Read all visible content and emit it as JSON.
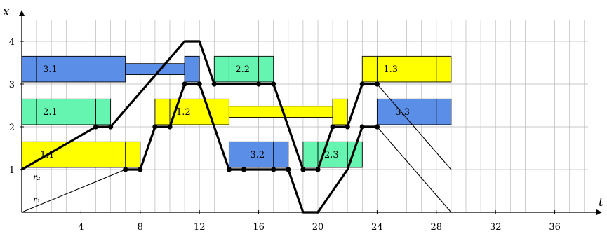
{
  "chart_data": {
    "type": "diagram",
    "axes": {
      "x_title": "t",
      "y_title": "x",
      "x_ticks": [
        4,
        8,
        12,
        16,
        20,
        24,
        28,
        32,
        36
      ],
      "x_tick_labels": [
        "4",
        "8",
        "12",
        "16",
        "20",
        "24",
        "28",
        "32",
        "36"
      ],
      "y_ticks": [
        1,
        2,
        3,
        4
      ],
      "y_tick_labels": [
        "1",
        "2",
        "3",
        "4"
      ],
      "x_range": [
        0,
        38.3
      ],
      "y_range": [
        0,
        4.7
      ],
      "grid": true
    },
    "colors": {
      "green": "#66f5b0",
      "blue": "#5b8ee6",
      "yellow": "#ffff00",
      "grid": "#b9b9b9"
    },
    "boxes": [
      {
        "label": "1.1",
        "color": "yellow",
        "t0": 0,
        "t1": 8,
        "x0": 1.05,
        "x1": 1.65,
        "dividers": [
          7
        ]
      },
      {
        "label": "2.1",
        "color": "green",
        "t0": 0,
        "t1": 6,
        "x0": 2.05,
        "x1": 2.65,
        "dividers": [
          1,
          5
        ]
      },
      {
        "label": "3.1",
        "color": "blue",
        "t0": 0,
        "t1": 7,
        "x0": 3.05,
        "x1": 3.65,
        "dividers": [
          1
        ]
      },
      {
        "label": "",
        "color": "blue",
        "t0": 7,
        "t1": 11,
        "x0": 3.22,
        "x1": 3.48,
        "dividers": []
      },
      {
        "label": "",
        "color": "blue",
        "t0": 11,
        "t1": 12,
        "x0": 3.05,
        "x1": 3.65,
        "dividers": []
      },
      {
        "label": "1.2",
        "color": "yellow",
        "t0": 9,
        "t1": 14,
        "x0": 2.05,
        "x1": 2.65,
        "dividers": [
          10
        ]
      },
      {
        "label": "",
        "color": "yellow",
        "t0": 14,
        "t1": 21,
        "x0": 2.22,
        "x1": 2.48,
        "dividers": []
      },
      {
        "label": "",
        "color": "yellow",
        "t0": 21,
        "t1": 22,
        "x0": 2.05,
        "x1": 2.65,
        "dividers": []
      },
      {
        "label": "2.2",
        "color": "green",
        "t0": 13,
        "t1": 17,
        "x0": 3.05,
        "x1": 3.65,
        "dividers": [
          14,
          16
        ]
      },
      {
        "label": "3.2",
        "color": "blue",
        "t0": 14,
        "t1": 18,
        "x0": 1.05,
        "x1": 1.65,
        "dividers": [
          15,
          17
        ]
      },
      {
        "label": "2.3",
        "color": "green",
        "t0": 19,
        "t1": 23,
        "x0": 1.05,
        "x1": 1.65,
        "dividers": [
          20,
          22
        ]
      },
      {
        "label": "1.3",
        "color": "yellow",
        "t0": 23,
        "t1": 29,
        "x0": 3.05,
        "x1": 3.65,
        "dividers": [
          24,
          28
        ]
      },
      {
        "label": "3.3",
        "color": "blue",
        "t0": 24,
        "t1": 29,
        "x0": 2.05,
        "x1": 2.65,
        "dividers": [
          28
        ]
      }
    ],
    "lines": [
      {
        "name": "r1",
        "label": "r₁",
        "thick": false,
        "points": [
          [
            0,
            0
          ],
          [
            7,
            1
          ],
          [
            8,
            1
          ],
          [
            9,
            2
          ],
          [
            10,
            2
          ],
          [
            11,
            3
          ],
          [
            12,
            3
          ],
          [
            14,
            1
          ],
          [
            15,
            1
          ],
          [
            17,
            1
          ],
          [
            18,
            1
          ],
          [
            19,
            0
          ],
          [
            20,
            0
          ],
          [
            22,
            1
          ],
          [
            23,
            2
          ],
          [
            24,
            2
          ],
          [
            29,
            0
          ]
        ]
      },
      {
        "name": "r2",
        "label": "r₂",
        "thick": false,
        "points": [
          [
            0,
            1
          ],
          [
            5,
            2
          ],
          [
            6,
            2
          ],
          [
            11,
            4
          ],
          [
            12,
            4
          ],
          [
            13,
            3
          ],
          [
            16,
            3
          ],
          [
            17,
            3
          ],
          [
            19,
            1
          ],
          [
            20,
            1
          ],
          [
            21,
            2
          ],
          [
            22,
            2
          ],
          [
            23,
            3
          ],
          [
            24,
            3
          ],
          [
            29,
            1
          ]
        ]
      },
      {
        "name": "max",
        "label": "",
        "thick": true,
        "points": [
          [
            0,
            1
          ],
          [
            5,
            2
          ],
          [
            6,
            2
          ],
          [
            11,
            4
          ],
          [
            12,
            4
          ],
          [
            13,
            3
          ],
          [
            16,
            3
          ],
          [
            17,
            3
          ],
          [
            19,
            1
          ],
          [
            20,
            1
          ],
          [
            21,
            2
          ],
          [
            22,
            2
          ],
          [
            23,
            3
          ],
          [
            24,
            3
          ]
        ]
      },
      {
        "name": "max2",
        "label": "",
        "thick": true,
        "points": [
          [
            7,
            1
          ],
          [
            8,
            1
          ],
          [
            9,
            2
          ],
          [
            10,
            2
          ],
          [
            11,
            3
          ],
          [
            12,
            3
          ],
          [
            14,
            1
          ],
          [
            15,
            1
          ],
          [
            17,
            1
          ],
          [
            18,
            1
          ],
          [
            19,
            0
          ],
          [
            20,
            0
          ],
          [
            22,
            1
          ],
          [
            23,
            2
          ],
          [
            24,
            2
          ]
        ]
      }
    ],
    "dots": [
      [
        5,
        2
      ],
      [
        6,
        2
      ],
      [
        7,
        1
      ],
      [
        8,
        1
      ],
      [
        9,
        2
      ],
      [
        10,
        2
      ],
      [
        11,
        3
      ],
      [
        12,
        3
      ],
      [
        13,
        3
      ],
      [
        14,
        1
      ],
      [
        15,
        1
      ],
      [
        16,
        3
      ],
      [
        17,
        3
      ],
      [
        17,
        1
      ],
      [
        18,
        1
      ],
      [
        19,
        1
      ],
      [
        20,
        1
      ],
      [
        21,
        2
      ],
      [
        22,
        2
      ],
      [
        23,
        3
      ],
      [
        24,
        3
      ],
      [
        23,
        2
      ],
      [
        24,
        2
      ]
    ]
  }
}
